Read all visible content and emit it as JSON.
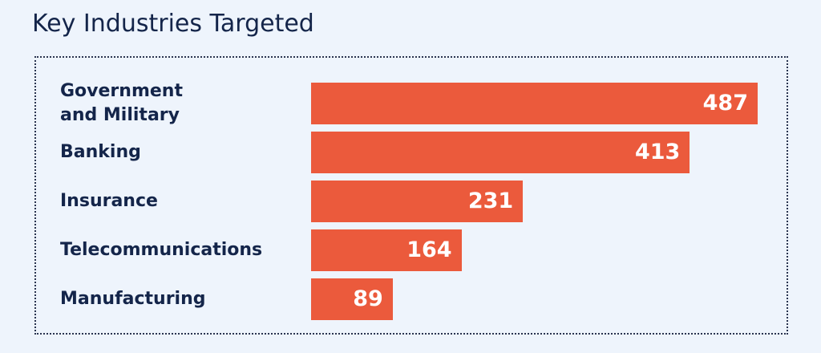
{
  "chart_data": {
    "type": "bar",
    "orientation": "horizontal",
    "title": "Key Industries Targeted",
    "categories": [
      "Government\nand Military",
      "Banking",
      "Insurance",
      "Telecommunications",
      "Manufacturing"
    ],
    "values": [
      487,
      413,
      231,
      164,
      89
    ],
    "color": "#eb5a3c"
  }
}
